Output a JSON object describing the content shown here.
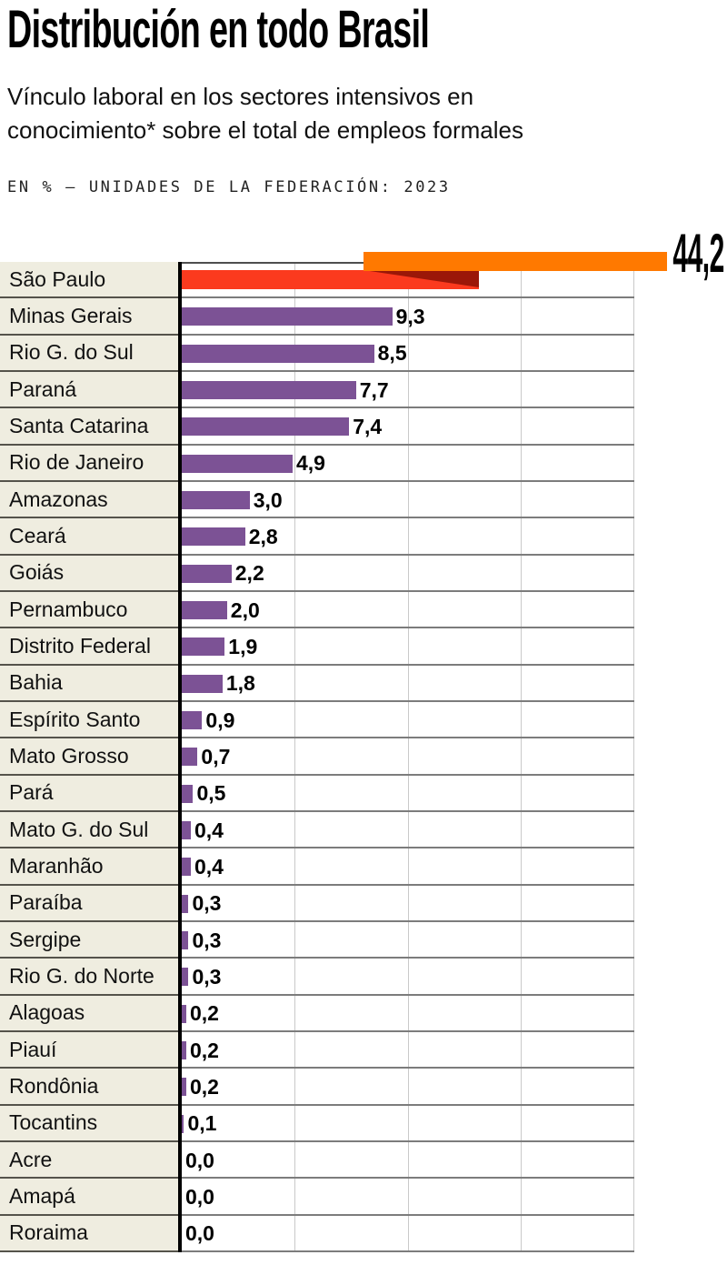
{
  "header": {
    "title": "Distribución en todo Brasil",
    "subtitle": "Vínculo laboral en los sectores intensivos en conocimiento* sobre el total de empleos formales",
    "kicker": "EN % — UNIDADES DE LA FEDERACIÓN: 2023"
  },
  "chart_data": {
    "type": "bar",
    "orientation": "horizontal",
    "unit": "%",
    "title": "Distribución en todo Brasil",
    "subtitle": "Vínculo laboral en los sectores intensivos en conocimiento* sobre el total de empleos formales",
    "axis_note": "EN % — UNIDADES DE LA FEDERACIÓN: 2023",
    "xlabel": "",
    "ylabel": "",
    "xlim": [
      0,
      20
    ],
    "gridlines_x": [
      5,
      10,
      15,
      20
    ],
    "grid": "vertical lines only, no tick labels",
    "legend": "none",
    "value_format": "comma-decimal",
    "rows": [
      {
        "name": "São Paulo",
        "value": 44.2,
        "display": "44,2",
        "overflow": true
      },
      {
        "name": "Minas Gerais",
        "value": 9.3,
        "display": "9,3"
      },
      {
        "name": "Rio G. do Sul",
        "value": 8.5,
        "display": "8,5"
      },
      {
        "name": "Paraná",
        "value": 7.7,
        "display": "7,7"
      },
      {
        "name": "Santa Catarina",
        "value": 7.4,
        "display": "7,4"
      },
      {
        "name": "Rio de Janeiro",
        "value": 4.9,
        "display": "4,9"
      },
      {
        "name": "Amazonas",
        "value": 3.0,
        "display": "3,0"
      },
      {
        "name": "Ceará",
        "value": 2.8,
        "display": "2,8"
      },
      {
        "name": "Goiás",
        "value": 2.2,
        "display": "2,2"
      },
      {
        "name": "Pernambuco",
        "value": 2.0,
        "display": "2,0"
      },
      {
        "name": "Distrito Federal",
        "value": 1.9,
        "display": "1,9"
      },
      {
        "name": "Bahia",
        "value": 1.8,
        "display": "1,8"
      },
      {
        "name": "Espírito Santo",
        "value": 0.9,
        "display": "0,9"
      },
      {
        "name": "Mato Grosso",
        "value": 0.7,
        "display": "0,7"
      },
      {
        "name": "Pará",
        "value": 0.5,
        "display": "0,5"
      },
      {
        "name": "Mato G. do Sul",
        "value": 0.4,
        "display": "0,4"
      },
      {
        "name": "Maranhão",
        "value": 0.4,
        "display": "0,4"
      },
      {
        "name": "Paraíba",
        "value": 0.3,
        "display": "0,3"
      },
      {
        "name": "Sergipe",
        "value": 0.3,
        "display": "0,3"
      },
      {
        "name": "Rio G. do Norte",
        "value": 0.3,
        "display": "0,3"
      },
      {
        "name": "Alagoas",
        "value": 0.2,
        "display": "0,2"
      },
      {
        "name": "Piauí",
        "value": 0.2,
        "display": "0,2"
      },
      {
        "name": "Rondônia",
        "value": 0.2,
        "display": "0,2"
      },
      {
        "name": "Tocantins",
        "value": 0.1,
        "display": "0,1"
      },
      {
        "name": "Acre",
        "value": 0.0,
        "display": "0,0"
      },
      {
        "name": "Amapá",
        "value": 0.0,
        "display": "0,0"
      },
      {
        "name": "Roraima",
        "value": 0.0,
        "display": "0,0"
      }
    ],
    "highlight": {
      "name": "São Paulo",
      "style": "bar exceeds axis range; drawn as red bar folded over into an orange continuation one band above, with dark-red crease, value label 44,2 at top right"
    },
    "colors": {
      "bar_purple": "#7C5295",
      "red": "#FB3A1E",
      "dark_red": "#9B1708",
      "orange": "#FF7900",
      "label_bg": "#EFEDE0",
      "sep_dark": "#55534B",
      "sep_gray": "#7C7C7C",
      "gridline": "#C9C9C9",
      "axis": "#000000"
    }
  }
}
